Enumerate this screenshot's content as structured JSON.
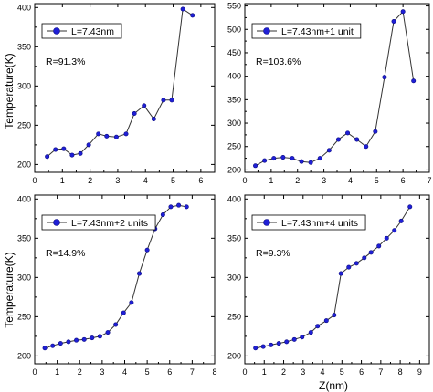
{
  "shared_ylabel": "Temperature(K)",
  "shared_xlabel": "Z(nm)",
  "chart_data": [
    {
      "type": "line",
      "xlim": [
        0,
        6.5
      ],
      "ylim": [
        190,
        405
      ],
      "xticks": [
        0,
        1,
        2,
        3,
        4,
        5,
        6
      ],
      "yticks": [
        200,
        250,
        300,
        350,
        400
      ],
      "series": [
        {
          "name": "L=7.43nm",
          "color": "#1f1fd6",
          "x": [
            0.45,
            0.75,
            1.05,
            1.35,
            1.65,
            1.95,
            2.3,
            2.6,
            2.95,
            3.3,
            3.6,
            3.95,
            4.3,
            4.65,
            4.95,
            5.35,
            5.7
          ],
          "y": [
            210,
            219,
            220,
            212,
            214,
            225,
            239,
            236,
            235,
            239,
            265,
            275,
            258,
            282,
            282,
            398,
            390
          ]
        }
      ],
      "annotation": "R=91.3%",
      "legend": "top-left"
    },
    {
      "type": "line",
      "xlim": [
        0,
        7
      ],
      "ylim": [
        195,
        555
      ],
      "xticks": [
        0,
        1,
        2,
        3,
        4,
        5,
        6,
        7
      ],
      "yticks": [
        200,
        250,
        300,
        350,
        400,
        450,
        500,
        550
      ],
      "series": [
        {
          "name": "L=7.43nm+1 unit",
          "color": "#1f1fd6",
          "x": [
            0.4,
            0.75,
            1.1,
            1.45,
            1.8,
            2.15,
            2.5,
            2.85,
            3.2,
            3.55,
            3.9,
            4.25,
            4.6,
            4.95,
            5.3,
            5.65,
            6.0,
            6.4
          ],
          "y": [
            209,
            220,
            225,
            227,
            225,
            218,
            216,
            225,
            242,
            265,
            279,
            265,
            250,
            282,
            398,
            517,
            538,
            390
          ]
        }
      ],
      "annotation": "R=103.6%",
      "legend": "top-left"
    },
    {
      "type": "line",
      "xlim": [
        0,
        8
      ],
      "ylim": [
        190,
        405
      ],
      "xticks": [
        0,
        1,
        2,
        3,
        4,
        5,
        6,
        7,
        8
      ],
      "yticks": [
        200,
        250,
        300,
        350,
        400
      ],
      "series": [
        {
          "name": "L=7.43nm+2 units",
          "color": "#1f1fd6",
          "x": [
            0.45,
            0.8,
            1.15,
            1.5,
            1.85,
            2.2,
            2.55,
            2.9,
            3.25,
            3.6,
            3.95,
            4.3,
            4.65,
            5.0,
            5.35,
            5.7,
            6.05,
            6.4,
            6.75
          ],
          "y": [
            210,
            213,
            216,
            218,
            220,
            221,
            223,
            225,
            230,
            240,
            255,
            268,
            305,
            335,
            362,
            380,
            390,
            392,
            390
          ]
        }
      ],
      "annotation": "R=14.9%",
      "legend": "top-left"
    },
    {
      "type": "line",
      "xlim": [
        0,
        9.5
      ],
      "ylim": [
        190,
        405
      ],
      "xticks": [
        0,
        1,
        2,
        3,
        4,
        5,
        6,
        7,
        8,
        9
      ],
      "yticks": [
        200,
        250,
        300,
        350,
        400
      ],
      "series": [
        {
          "name": "L=7.43nm+4 units",
          "color": "#1f1fd6",
          "x": [
            0.55,
            0.95,
            1.35,
            1.75,
            2.15,
            2.55,
            2.95,
            3.4,
            3.75,
            4.2,
            4.6,
            4.95,
            5.35,
            5.75,
            6.15,
            6.5,
            6.9,
            7.3,
            7.7,
            8.05,
            8.5
          ],
          "y": [
            210,
            212,
            214,
            216,
            218,
            221,
            224,
            230,
            238,
            245,
            252,
            305,
            313,
            318,
            325,
            332,
            340,
            350,
            360,
            372,
            390
          ]
        }
      ],
      "annotation": "R=9.3%",
      "legend": "top-left"
    }
  ]
}
